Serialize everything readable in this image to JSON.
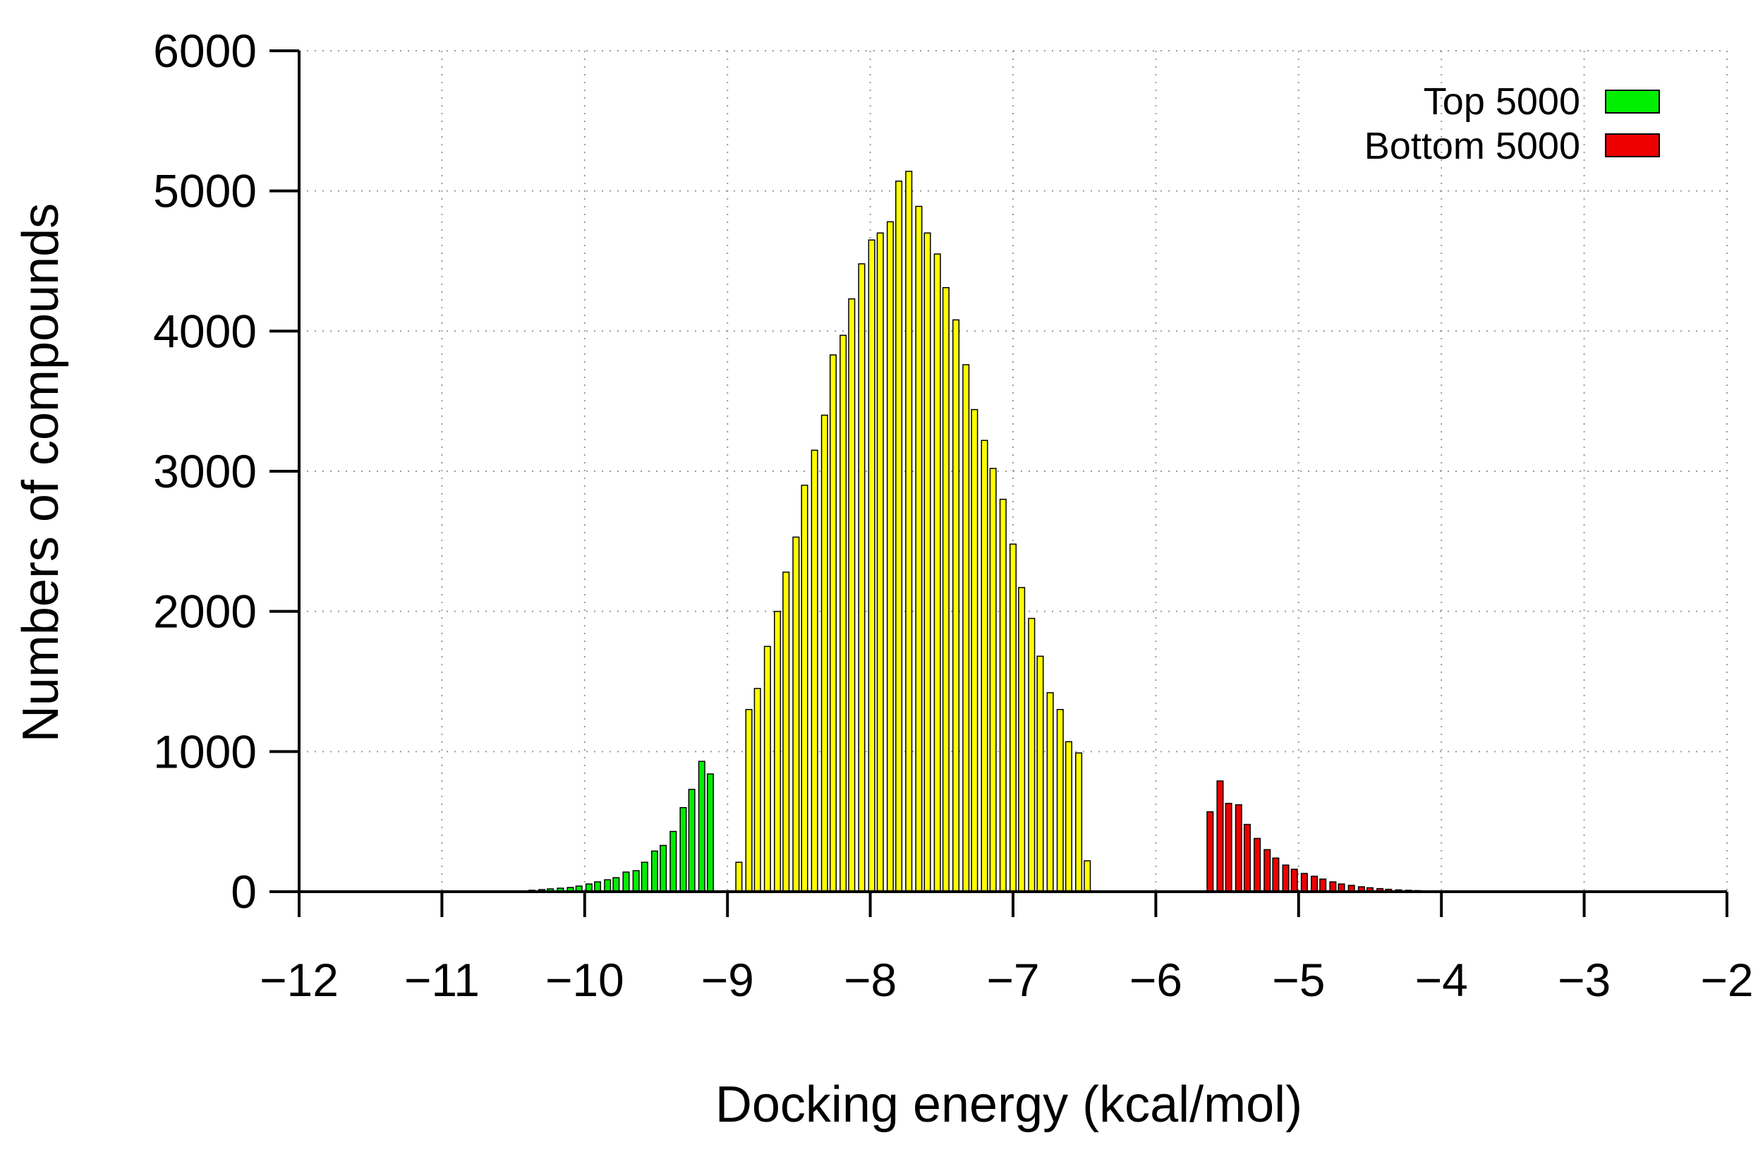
{
  "chart_data": {
    "type": "bar",
    "xlabel": "Docking energy (kcal/mol)",
    "ylabel": "Numbers of compounds",
    "xlim": [
      -12,
      -2
    ],
    "ylim": [
      0,
      6000
    ],
    "xticks": [
      "−12",
      "−11",
      "−10",
      "−9",
      "−8",
      "−7",
      "−6",
      "−5",
      "−4",
      "−3",
      "−2"
    ],
    "yticks": [
      "0",
      "1000",
      "2000",
      "3000",
      "4000",
      "5000",
      "6000"
    ],
    "grid": true,
    "legend_position": "top-right",
    "bin_width": 0.066,
    "series": [
      {
        "name": "Top 5000",
        "color": "#00ee00",
        "x": [
          -10.5,
          -10.43,
          -10.37,
          -10.3,
          -10.24,
          -10.17,
          -10.1,
          -10.04,
          -9.97,
          -9.91,
          -9.84,
          -9.78,
          -9.71,
          -9.64,
          -9.58,
          -9.51,
          -9.45,
          -9.38,
          -9.31,
          -9.25,
          -9.18,
          -9.12,
          -9.05,
          -8.98,
          -8.92
        ],
        "values": [
          3,
          6,
          10,
          15,
          20,
          25,
          30,
          40,
          55,
          70,
          85,
          100,
          140,
          150,
          210,
          290,
          330,
          430,
          600,
          730,
          930,
          840,
          0,
          0,
          0
        ]
      },
      {
        "name": "",
        "color": "#ffff00",
        "x": [
          -8.92,
          -8.85,
          -8.79,
          -8.72,
          -8.65,
          -8.59,
          -8.52,
          -8.46,
          -8.39,
          -8.32,
          -8.26,
          -8.19,
          -8.13,
          -8.06,
          -7.99,
          -7.93,
          -7.86,
          -7.8,
          -7.73,
          -7.66,
          -7.6,
          -7.53,
          -7.47,
          -7.4,
          -7.33,
          -7.27,
          -7.2,
          -7.14,
          -7.07,
          -7.0,
          -6.94,
          -6.87,
          -6.81,
          -6.74,
          -6.67,
          -6.61,
          -6.54,
          -6.48,
          -6.41,
          -6.35,
          -6.28,
          -6.21,
          -6.15,
          -6.08,
          -6.02,
          -5.95,
          -5.88,
          -5.82,
          -5.75,
          -5.69,
          -5.62
        ],
        "values": [
          210,
          1300,
          1450,
          1750,
          2000,
          2280,
          2530,
          2900,
          3150,
          3400,
          3830,
          3970,
          4230,
          4480,
          4650,
          4700,
          4780,
          5070,
          5140,
          4890,
          4700,
          4550,
          4310,
          4080,
          3760,
          3440,
          3220,
          3020,
          2800,
          2480,
          2170,
          1950,
          1680,
          1420,
          1300,
          1070,
          990,
          220,
          0,
          0,
          0,
          0,
          0,
          0,
          0,
          0,
          0,
          0,
          0,
          0,
          0
        ]
      },
      {
        "name": "Bottom 5000",
        "color": "#ee0000",
        "x": [
          -5.62,
          -5.55,
          -5.49,
          -5.42,
          -5.36,
          -5.29,
          -5.22,
          -5.16,
          -5.09,
          -5.03,
          -4.96,
          -4.89,
          -4.83,
          -4.76,
          -4.7,
          -4.63,
          -4.56,
          -4.5,
          -4.43,
          -4.37,
          -4.3,
          -4.23,
          -4.17,
          -4.1,
          -4.04,
          -3.97,
          -3.9,
          -3.84,
          -3.77
        ],
        "values": [
          570,
          790,
          630,
          620,
          480,
          380,
          300,
          240,
          190,
          160,
          130,
          110,
          90,
          70,
          55,
          45,
          35,
          28,
          22,
          17,
          13,
          10,
          8,
          6,
          5,
          4,
          3,
          2,
          1
        ]
      }
    ]
  }
}
